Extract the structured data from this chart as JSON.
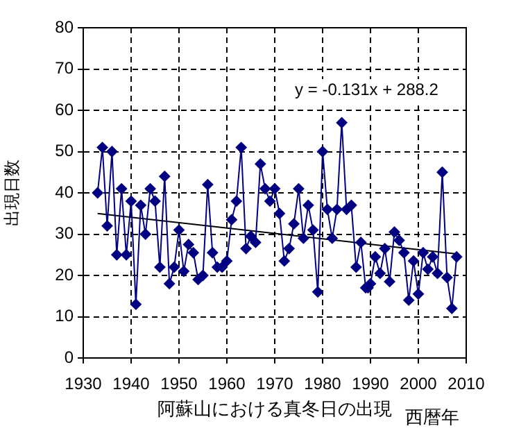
{
  "chart_data": {
    "type": "line",
    "xlabel": "西暦年",
    "ylabel": "出現日数",
    "annotations": [
      "y = -0.131x + 288.2",
      "阿蘇山における真冬日の出現"
    ],
    "xlim": [
      1930,
      2010
    ],
    "xticks": [
      1930,
      1940,
      1950,
      1960,
      1970,
      1980,
      1990,
      2000,
      2010
    ],
    "ylim": [
      0,
      80
    ],
    "yticks": [
      0,
      10,
      20,
      30,
      40,
      50,
      60,
      70,
      80
    ],
    "grid": true,
    "legend": false,
    "marker": "diamond",
    "line_style": "solid",
    "series": [
      {
        "color": "#000080",
        "x": [
          1933,
          1934,
          1935,
          1936,
          1937,
          1938,
          1939,
          1940,
          1941,
          1942,
          1943,
          1944,
          1945,
          1946,
          1947,
          1948,
          1949,
          1950,
          1951,
          1952,
          1953,
          1954,
          1955,
          1956,
          1957,
          1958,
          1959,
          1960,
          1961,
          1962,
          1963,
          1964,
          1965,
          1966,
          1967,
          1968,
          1969,
          1970,
          1971,
          1972,
          1973,
          1974,
          1975,
          1976,
          1977,
          1978,
          1979,
          1980,
          1981,
          1982,
          1983,
          1984,
          1985,
          1986,
          1987,
          1988,
          1989,
          1989.5,
          1990,
          1991,
          1992,
          1993,
          1994,
          1995,
          1996,
          1997,
          1998,
          1999,
          2000,
          2001,
          2002,
          2003,
          2004,
          2005,
          2006,
          2007,
          2008
        ],
        "values": [
          40,
          51,
          32,
          50,
          25,
          41,
          25,
          38,
          13,
          37,
          30,
          41,
          38,
          22,
          44,
          18,
          22,
          31,
          21,
          27.5,
          25.5,
          19,
          20,
          42,
          25.5,
          22,
          22,
          23.5,
          33.5,
          38,
          51,
          26.5,
          29.5,
          28,
          47,
          41,
          38,
          41,
          35,
          23.5,
          26.5,
          32.5,
          41,
          29,
          37,
          31,
          16,
          50,
          36,
          29,
          36,
          57,
          36,
          37,
          22,
          28,
          17,
          17,
          18,
          24.5,
          20.5,
          26.5,
          18.5,
          30.5,
          28.5,
          25.5,
          14,
          23.5,
          15.5,
          25.5,
          21.5,
          24.5,
          20.5,
          45,
          19.5,
          12,
          24.5
        ]
      },
      {
        "type": "line",
        "color": "#000000",
        "marker": "none",
        "x": [
          1933,
          2008
        ],
        "values": [
          35.0,
          25.2
        ]
      }
    ]
  }
}
